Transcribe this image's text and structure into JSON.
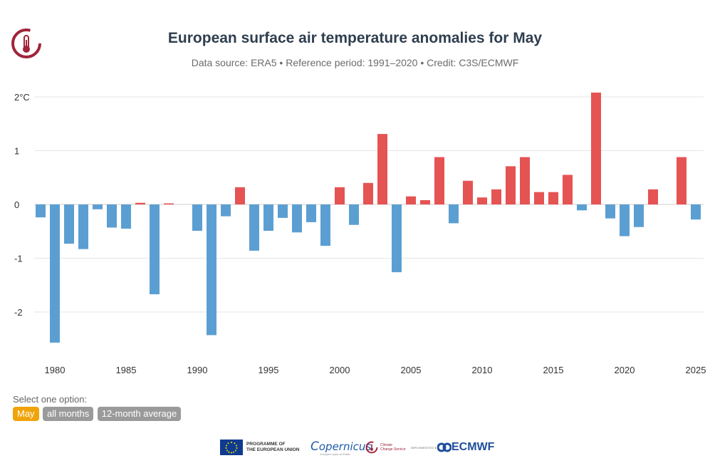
{
  "header": {
    "title": "European surface air temperature anomalies for May",
    "subtitle": "Data source: ERA5 • Reference period: 1991–2020 • Credit: C3S/ECMWF"
  },
  "colors": {
    "warm": "#e55353",
    "cold": "#5b9fd2",
    "active": "#f0a30a",
    "inactive": "#9a9a9a",
    "title": "#2f3e4e"
  },
  "chart_data": {
    "type": "bar",
    "title": "European surface air temperature anomalies for May",
    "xlabel": "",
    "ylabel": "°C",
    "ylim": [
      -2.7,
      2.2
    ],
    "yticks": [
      -2,
      -1,
      0,
      1,
      2
    ],
    "ytick_labels": [
      "-2",
      "-1",
      "0",
      "1",
      "2°C"
    ],
    "xticks": [
      1980,
      1985,
      1990,
      1995,
      2000,
      2005,
      2010,
      2015,
      2020,
      2025
    ],
    "grid": true,
    "x": [
      1979,
      1980,
      1981,
      1982,
      1983,
      1984,
      1985,
      1986,
      1987,
      1988,
      1989,
      1990,
      1991,
      1992,
      1993,
      1994,
      1995,
      1996,
      1997,
      1998,
      1999,
      2000,
      2001,
      2002,
      2003,
      2004,
      2005,
      2006,
      2007,
      2008,
      2009,
      2010,
      2011,
      2012,
      2013,
      2014,
      2015,
      2016,
      2017,
      2018,
      2019,
      2020,
      2021,
      2022,
      2023,
      2024,
      2025
    ],
    "values": [
      -0.24,
      -2.57,
      -0.73,
      -0.83,
      -0.09,
      -0.43,
      -0.45,
      0.03,
      -1.67,
      0.02,
      0.0,
      -0.49,
      -2.43,
      -0.22,
      0.32,
      -0.86,
      -0.49,
      -0.25,
      -0.52,
      -0.33,
      -0.77,
      0.32,
      -0.38,
      0.4,
      1.31,
      -1.26,
      0.15,
      0.08,
      0.88,
      -0.35,
      0.44,
      0.13,
      0.28,
      0.71,
      0.88,
      0.23,
      0.23,
      0.55,
      -0.11,
      2.08,
      -0.26,
      -0.59,
      -0.42,
      0.28,
      0.0,
      0.88,
      -0.28
    ]
  },
  "selector": {
    "label": "Select one option:",
    "options": [
      "May",
      "all months",
      "12-month average"
    ],
    "active": "May"
  },
  "footer": {
    "eu_text_1": "PROGRAMME OF",
    "eu_text_2": "THE EUROPEAN UNION",
    "copernicus": "opernicus",
    "copernicus_sub": "Europe's eyes on Earth",
    "c3s_1": "Climate",
    "c3s_2": "Change Service",
    "implemented_by": "IMPLEMENTED BY",
    "ecmwf": "ECMWF"
  }
}
